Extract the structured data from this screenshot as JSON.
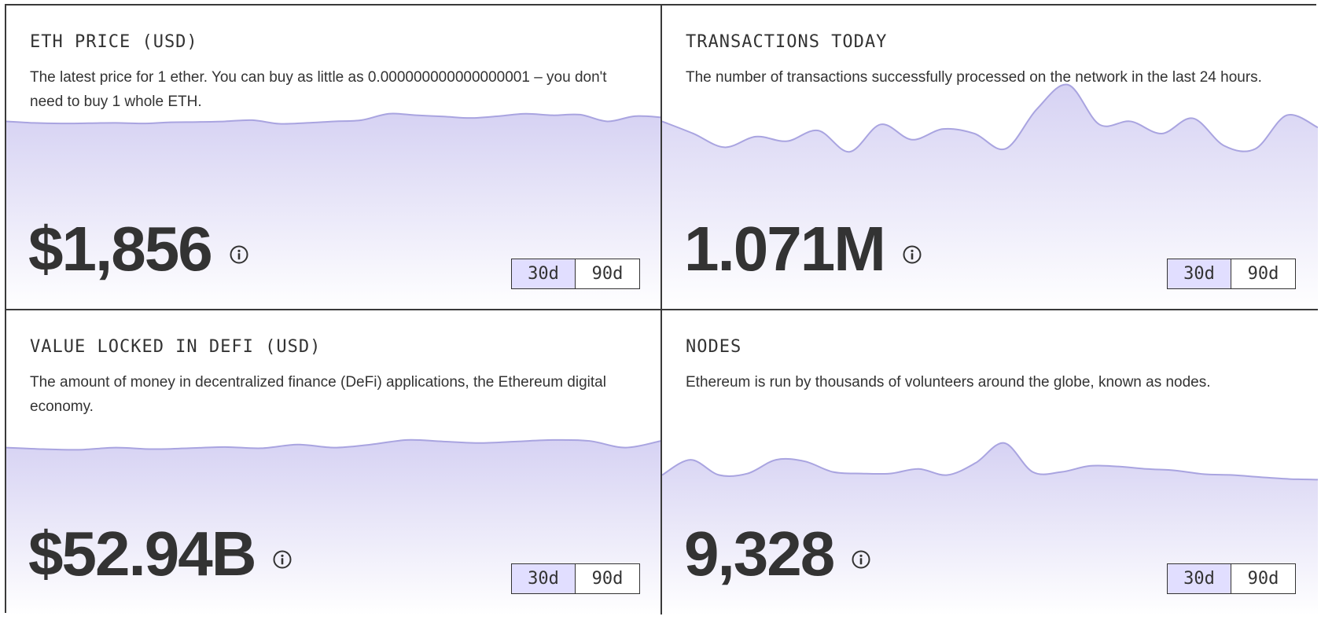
{
  "cards": [
    {
      "title": "ETH PRICE (USD)",
      "description": "The latest price for 1 ether. You can buy as little as 0.000000000000000001 – you don't need to buy 1 whole ETH.",
      "value": "$1,856",
      "buttons": [
        "30d",
        "90d"
      ],
      "active_range": "30d",
      "series_level": [
        0.62,
        0.615,
        0.613,
        0.614,
        0.615,
        0.613,
        0.617,
        0.618,
        0.62,
        0.624,
        0.612,
        0.615,
        0.62,
        0.624,
        0.645,
        0.64,
        0.636,
        0.631,
        0.637,
        0.645,
        0.64,
        0.642,
        0.62,
        0.637,
        0.633
      ]
    },
    {
      "title": "TRANSACTIONS TODAY",
      "description": "The number of transactions successfully processed on the network in the last 24 hours.",
      "value": "1.071M",
      "buttons": [
        "30d",
        "90d"
      ],
      "active_range": "30d",
      "series_level": [
        0.62,
        0.58,
        0.535,
        0.57,
        0.555,
        0.59,
        0.52,
        0.61,
        0.56,
        0.595,
        0.58,
        0.53,
        0.66,
        0.74,
        0.61,
        0.62,
        0.58,
        0.63,
        0.54,
        0.53,
        0.64,
        0.6
      ]
    },
    {
      "title": "VALUE LOCKED IN DEFI (USD)",
      "description": "The amount of money in decentralized finance (DeFi) applications, the Ethereum digital economy.",
      "value": "$52.94B",
      "buttons": [
        "30d",
        "90d"
      ],
      "active_range": "30d",
      "series_level": [
        0.55,
        0.545,
        0.543,
        0.55,
        0.545,
        0.548,
        0.552,
        0.548,
        0.56,
        0.55,
        0.56,
        0.575,
        0.57,
        0.565,
        0.57,
        0.575,
        0.572,
        0.55,
        0.573
      ]
    },
    {
      "title": "NODES",
      "description": "Ethereum is run by thousands of volunteers around the globe, known as nodes.",
      "value": "9,328",
      "buttons": [
        "30d",
        "90d"
      ],
      "active_range": "30d",
      "series_level": [
        0.46,
        0.51,
        0.46,
        0.465,
        0.51,
        0.505,
        0.47,
        0.465,
        0.465,
        0.48,
        0.46,
        0.5,
        0.565,
        0.47,
        0.47,
        0.49,
        0.488,
        0.48,
        0.475,
        0.463,
        0.46,
        0.453,
        0.447,
        0.445
      ]
    }
  ],
  "colors": {
    "chart_line": "#a9a4e0",
    "chart_fill_top": "#d6d2f3",
    "chart_fill_bottom": "#ffffff",
    "active_button": "#e1deff",
    "border": "#3a3a3a",
    "text": "#333333"
  }
}
